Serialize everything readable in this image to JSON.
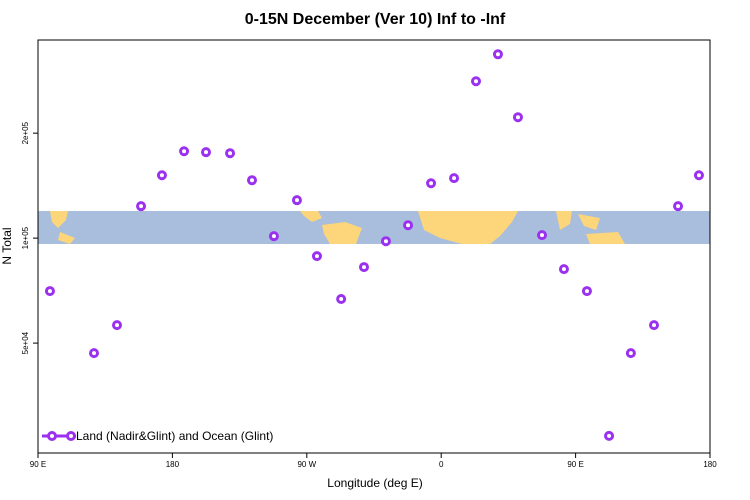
{
  "chart_data": {
    "type": "scatter",
    "title": "0-15N December (Ver 10)   Inf to -Inf",
    "x_label": "Longitude (deg E)",
    "y_label": "N Total",
    "log_y": true,
    "legend": "bottom-left",
    "xlim": [
      90,
      540
    ],
    "xticks": [
      {
        "value": 90,
        "label": "90 E"
      },
      {
        "value": 180,
        "label": "180"
      },
      {
        "value": 270,
        "label": "90 W"
      },
      {
        "value": 360,
        "label": "0"
      },
      {
        "value": 450,
        "label": "90 E"
      },
      {
        "value": 540,
        "label": "180"
      }
    ],
    "ylim": [
      24200,
      370000
    ],
    "yticks": [
      {
        "value": 50000,
        "label": "5e+04"
      },
      {
        "value": 100000,
        "label": "1e+05"
      },
      {
        "value": 200000,
        "label": "2e+05"
      }
    ],
    "x": [
      98,
      127.5,
      142.9,
      159,
      173,
      187.8,
      202.5,
      218.6,
      233.3,
      248,
      263.4,
      276.8,
      293,
      308.3,
      323,
      337.8,
      353.2,
      368.6,
      383.3,
      398,
      411.4,
      427.5,
      442.2,
      457.6,
      472.4,
      487,
      502.5,
      518.6,
      532.6
    ],
    "series": [
      {
        "name": "Land (Nadir&Glint) and Ocean (Glint)",
        "color": "#9b30f0",
        "values": [
          70500,
          46800,
          56300,
          123500,
          151500,
          177500,
          176400,
          175200,
          146600,
          101300,
          128500,
          88800,
          66900,
          82600,
          98000,
          108900,
          143700,
          148600,
          281800,
          336700,
          222200,
          102000,
          81500,
          70500,
          27100,
          46800,
          56300,
          123500,
          151500
        ]
      }
    ]
  }
}
